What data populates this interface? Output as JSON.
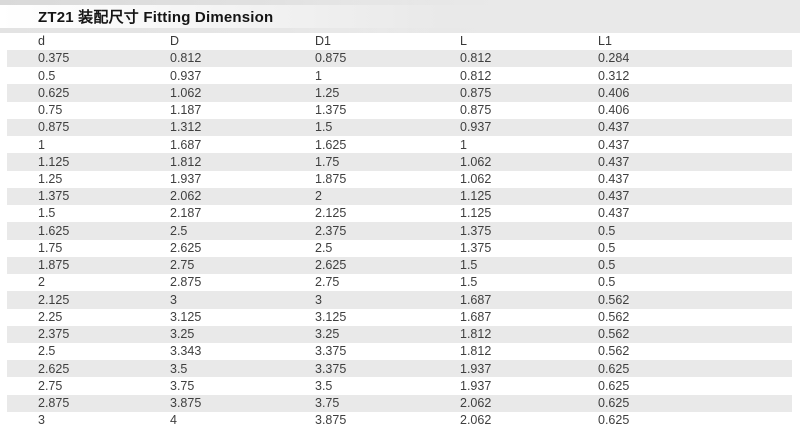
{
  "title": "ZT21 装配尺寸 Fitting Dimension",
  "colors": {
    "stripe": "#e9e9e9",
    "band": "#e9e9e9",
    "text": "#3f3f3f",
    "title_text": "#151515"
  },
  "table": {
    "columns": [
      "d",
      "D",
      "D1",
      "L",
      "L1"
    ],
    "rows": [
      [
        "0.375",
        "0.812",
        "0.875",
        "0.812",
        "0.284"
      ],
      [
        "0.5",
        "0.937",
        "1",
        "0.812",
        "0.312"
      ],
      [
        "0.625",
        "1.062",
        "1.25",
        "0.875",
        "0.406"
      ],
      [
        "0.75",
        "1.187",
        "1.375",
        "0.875",
        "0.406"
      ],
      [
        "0.875",
        "1.312",
        "1.5",
        "0.937",
        "0.437"
      ],
      [
        "1",
        "1.687",
        "1.625",
        "1",
        "0.437"
      ],
      [
        "1.125",
        "1.812",
        "1.75",
        "1.062",
        "0.437"
      ],
      [
        "1.25",
        "1.937",
        "1.875",
        "1.062",
        "0.437"
      ],
      [
        "1.375",
        "2.062",
        "2",
        "1.125",
        "0.437"
      ],
      [
        "1.5",
        "2.187",
        "2.125",
        "1.125",
        "0.437"
      ],
      [
        "1.625",
        "2.5",
        "2.375",
        "1.375",
        "0.5"
      ],
      [
        "1.75",
        "2.625",
        "2.5",
        "1.375",
        "0.5"
      ],
      [
        "1.875",
        "2.75",
        "2.625",
        "1.5",
        "0.5"
      ],
      [
        "2",
        "2.875",
        "2.75",
        "1.5",
        "0.5"
      ],
      [
        "2.125",
        "3",
        "3",
        "1.687",
        "0.562"
      ],
      [
        "2.25",
        "3.125",
        "3.125",
        "1.687",
        "0.562"
      ],
      [
        "2.375",
        "3.25",
        "3.25",
        "1.812",
        "0.562"
      ],
      [
        "2.5",
        "3.343",
        "3.375",
        "1.812",
        "0.562"
      ],
      [
        "2.625",
        "3.5",
        "3.375",
        "1.937",
        "0.625"
      ],
      [
        "2.75",
        "3.75",
        "3.5",
        "1.937",
        "0.625"
      ],
      [
        "2.875",
        "3.875",
        "3.75",
        "2.062",
        "0.625"
      ],
      [
        "3",
        "4",
        "3.875",
        "2.062",
        "0.625"
      ]
    ]
  }
}
